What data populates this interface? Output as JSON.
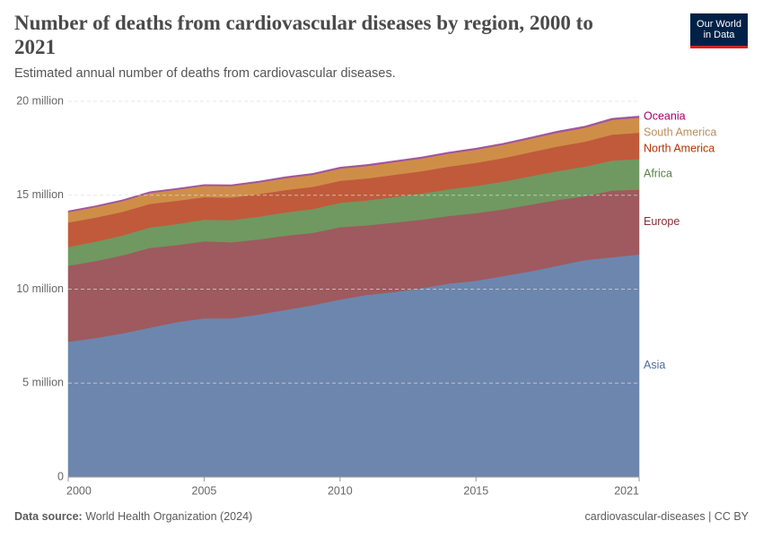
{
  "header": {
    "logo_line1": "Our World",
    "logo_line2": "in Data"
  },
  "chart_data": {
    "type": "stacked-area",
    "title": "Number of deaths from cardiovascular diseases by region, 2000 to 2021",
    "subtitle": "Estimated annual number of deaths from cardiovascular diseases.",
    "x": [
      2000,
      2001,
      2002,
      2003,
      2004,
      2005,
      2006,
      2007,
      2008,
      2009,
      2010,
      2011,
      2012,
      2013,
      2014,
      2015,
      2016,
      2017,
      2018,
      2019,
      2020,
      2021
    ],
    "xlim": [
      2000,
      2021
    ],
    "xticks": [
      2000,
      2005,
      2010,
      2015,
      2021
    ],
    "ylim": [
      0,
      20
    ],
    "yticks": [
      0,
      {
        "value": 5,
        "label": "5 million"
      },
      {
        "value": 10,
        "label": "10 million"
      },
      {
        "value": 15,
        "label": "15 million"
      },
      {
        "value": 20,
        "label": "20 million"
      }
    ],
    "grid": true,
    "series": [
      {
        "name": "Asia",
        "color": "#6d86ae",
        "label_color": "#4c6a9c",
        "values": [
          7.2,
          7.4,
          7.65,
          7.95,
          8.25,
          8.45,
          8.45,
          8.65,
          8.9,
          9.15,
          9.45,
          9.7,
          9.85,
          10.05,
          10.3,
          10.45,
          10.7,
          10.95,
          11.25,
          11.55,
          11.7,
          11.85
        ]
      },
      {
        "name": "Europe",
        "color": "#9e5a5e",
        "label_color": "#883039",
        "values": [
          4.05,
          4.1,
          4.15,
          4.25,
          4.1,
          4.1,
          4.05,
          4.0,
          3.95,
          3.85,
          3.85,
          3.7,
          3.7,
          3.65,
          3.6,
          3.6,
          3.55,
          3.55,
          3.5,
          3.4,
          3.55,
          3.45
        ]
      },
      {
        "name": "Africa",
        "color": "#6f9960",
        "label_color": "#578145",
        "values": [
          1.0,
          1.03,
          1.06,
          1.09,
          1.12,
          1.15,
          1.18,
          1.21,
          1.24,
          1.27,
          1.3,
          1.33,
          1.36,
          1.39,
          1.42,
          1.45,
          1.48,
          1.51,
          1.54,
          1.57,
          1.6,
          1.63
        ]
      },
      {
        "name": "North America",
        "color": "#c05a3b",
        "label_color": "#b13507",
        "values": [
          1.3,
          1.28,
          1.26,
          1.25,
          1.24,
          1.2,
          1.2,
          1.2,
          1.19,
          1.18,
          1.17,
          1.17,
          1.18,
          1.19,
          1.21,
          1.23,
          1.25,
          1.28,
          1.31,
          1.33,
          1.38,
          1.4
        ]
      },
      {
        "name": "South America",
        "color": "#cf8e48",
        "label_color": "#bc8e5a",
        "values": [
          0.55,
          0.56,
          0.57,
          0.58,
          0.59,
          0.6,
          0.61,
          0.62,
          0.63,
          0.64,
          0.65,
          0.66,
          0.67,
          0.68,
          0.69,
          0.7,
          0.71,
          0.72,
          0.73,
          0.74,
          0.78,
          0.8
        ]
      },
      {
        "name": "Oceania",
        "color": "#a2559c",
        "label_color": "#a2006e",
        "values": [
          0.07,
          0.07,
          0.07,
          0.07,
          0.07,
          0.07,
          0.07,
          0.07,
          0.08,
          0.08,
          0.08,
          0.08,
          0.08,
          0.08,
          0.08,
          0.08,
          0.08,
          0.08,
          0.09,
          0.09,
          0.09,
          0.09
        ]
      }
    ],
    "source_label": "Data source:",
    "source": "World Health Organization (2024)",
    "license": "cardiovascular-diseases | CC BY"
  }
}
